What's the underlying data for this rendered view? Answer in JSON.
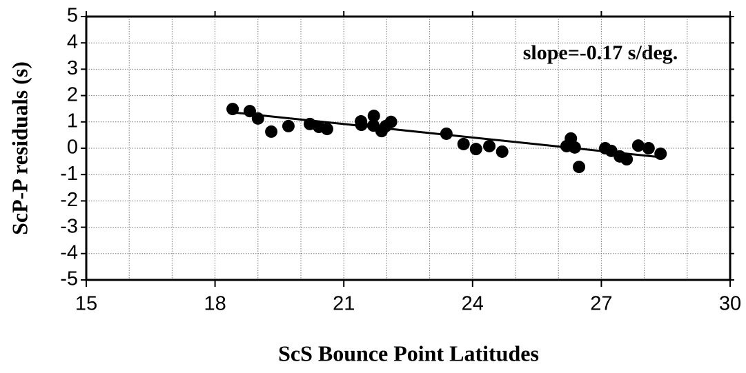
{
  "chart_data": {
    "type": "scatter",
    "xlabel": "ScS Bounce Point Latitudes",
    "ylabel": "ScP-P residuals (s)",
    "annotation": "slope=-0.17 s/deg.",
    "x": [
      18.41,
      18.81,
      19.0,
      19.31,
      19.71,
      20.21,
      20.42,
      20.61,
      21.4,
      21.41,
      21.7,
      21.69,
      21.88,
      21.98,
      22.1,
      23.39,
      23.79,
      24.08,
      24.39,
      24.69,
      26.19,
      26.29,
      26.38,
      26.48,
      27.09,
      27.23,
      27.43,
      27.59,
      27.86,
      28.1,
      28.38
    ],
    "values": [
      1.49,
      1.41,
      1.13,
      0.63,
      0.84,
      0.92,
      0.81,
      0.73,
      1.02,
      0.89,
      1.23,
      0.86,
      0.65,
      0.84,
      1.0,
      0.55,
      0.16,
      -0.03,
      0.08,
      -0.13,
      0.08,
      0.37,
      0.03,
      -0.71,
      0.0,
      -0.1,
      -0.31,
      -0.42,
      0.1,
      0.0,
      -0.21
    ],
    "color": "#000000",
    "fit_line": {
      "x": [
        18.41,
        28.38
      ],
      "values": [
        1.36,
        -0.34
      ]
    },
    "xlim": [
      15,
      30
    ],
    "xticks": [
      15,
      18,
      21,
      24,
      27,
      30
    ],
    "xgrid": [
      16,
      17,
      19,
      20,
      22,
      23,
      25,
      26,
      28,
      29
    ],
    "ylim": [
      -5,
      5
    ],
    "yticks": [
      -5,
      -4,
      -3,
      -2,
      -1,
      0,
      1,
      2,
      3,
      4,
      5
    ],
    "grid": true
  }
}
